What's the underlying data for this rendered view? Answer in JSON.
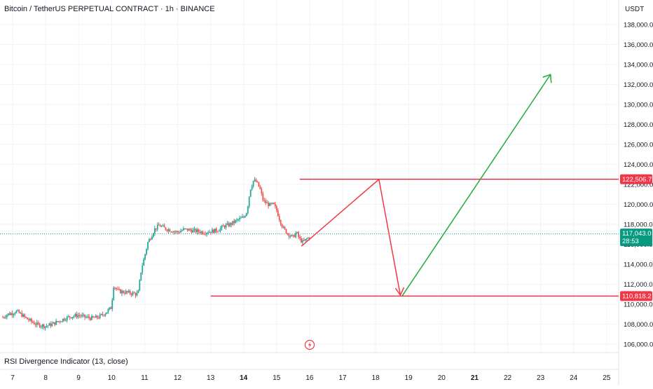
{
  "header": {
    "title": "Bitcoin / TetherUS PERPETUAL CONTRACT · 1h · BINANCE",
    "currency": "USDT"
  },
  "indicator": {
    "label": "RSI Divergence Indicator (13, close)"
  },
  "price_tags": {
    "resistance": "122,506.7",
    "current": "117,043.0",
    "countdown": "28:53",
    "support": "110,818.2"
  },
  "colors": {
    "up": "#26a69a",
    "down": "#ef5350",
    "tag_red": "#f23645",
    "tag_green": "#089981",
    "line_red": "#f23645",
    "line_green": "#22ab3a"
  },
  "icons": {
    "flash": "flash-icon"
  },
  "chart_data": {
    "type": "candlestick",
    "x_ticks": [
      {
        "label": "7",
        "day": 7
      },
      {
        "label": "8",
        "day": 8
      },
      {
        "label": "9",
        "day": 9
      },
      {
        "label": "10",
        "day": 10
      },
      {
        "label": "11",
        "day": 11
      },
      {
        "label": "12",
        "day": 12
      },
      {
        "label": "13",
        "day": 13
      },
      {
        "label": "14",
        "day": 14,
        "bold": true
      },
      {
        "label": "15",
        "day": 15
      },
      {
        "label": "16",
        "day": 16
      },
      {
        "label": "17",
        "day": 17
      },
      {
        "label": "18",
        "day": 18
      },
      {
        "label": "19",
        "day": 19
      },
      {
        "label": "20",
        "day": 20
      },
      {
        "label": "21",
        "day": 21,
        "bold": true
      },
      {
        "label": "22",
        "day": 22
      },
      {
        "label": "23",
        "day": 23
      },
      {
        "label": "24",
        "day": 24
      },
      {
        "label": "25",
        "day": 25
      }
    ],
    "y_ticks": [
      {
        "label": "106,000.0",
        "value": 106000
      },
      {
        "label": "108,000.0",
        "value": 108000
      },
      {
        "label": "110,000.0",
        "value": 110000
      },
      {
        "label": "112,000.0",
        "value": 112000
      },
      {
        "label": "114,000.0",
        "value": 114000
      },
      {
        "label": "116,000.0",
        "value": 116000
      },
      {
        "label": "118,000.0",
        "value": 118000
      },
      {
        "label": "120,000.0",
        "value": 120000
      },
      {
        "label": "122,000.0",
        "value": 122000
      },
      {
        "label": "124,000.0",
        "value": 124000
      },
      {
        "label": "126,000.0",
        "value": 126000
      },
      {
        "label": "128,000.0",
        "value": 128000
      },
      {
        "label": "130,000.0",
        "value": 130000
      },
      {
        "label": "132,000.0",
        "value": 132000
      },
      {
        "label": "134,000.0",
        "value": 134000
      },
      {
        "label": "136,000.0",
        "value": 136000
      },
      {
        "label": "138,000.0",
        "value": 138000
      }
    ],
    "price_path": [
      [
        6.7,
        108700
      ],
      [
        6.85,
        109000
      ],
      [
        7.0,
        109100
      ],
      [
        7.1,
        109300
      ],
      [
        7.25,
        109000
      ],
      [
        7.4,
        108600
      ],
      [
        7.55,
        108300
      ],
      [
        7.7,
        108000
      ],
      [
        7.85,
        107900
      ],
      [
        8.0,
        107800
      ],
      [
        8.2,
        108000
      ],
      [
        8.4,
        108300
      ],
      [
        8.6,
        108600
      ],
      [
        8.8,
        108800
      ],
      [
        9.0,
        108900
      ],
      [
        9.2,
        108700
      ],
      [
        9.4,
        108600
      ],
      [
        9.6,
        108700
      ],
      [
        9.8,
        109100
      ],
      [
        10.0,
        109700
      ],
      [
        10.05,
        111900
      ],
      [
        10.2,
        111300
      ],
      [
        10.4,
        111200
      ],
      [
        10.6,
        111100
      ],
      [
        10.8,
        111000
      ],
      [
        10.9,
        113500
      ],
      [
        11.0,
        114800
      ],
      [
        11.1,
        116200
      ],
      [
        11.2,
        116800
      ],
      [
        11.3,
        117500
      ],
      [
        11.45,
        117900
      ],
      [
        11.6,
        117600
      ],
      [
        11.8,
        117400
      ],
      [
        12.0,
        117200
      ],
      [
        12.2,
        117500
      ],
      [
        12.4,
        117400
      ],
      [
        12.6,
        117300
      ],
      [
        12.8,
        117200
      ],
      [
        13.0,
        117300
      ],
      [
        13.2,
        117400
      ],
      [
        13.4,
        117800
      ],
      [
        13.6,
        118000
      ],
      [
        13.8,
        118400
      ],
      [
        14.0,
        118700
      ],
      [
        14.1,
        119300
      ],
      [
        14.2,
        121500
      ],
      [
        14.3,
        122400
      ],
      [
        14.4,
        122200
      ],
      [
        14.5,
        121500
      ],
      [
        14.6,
        120300
      ],
      [
        14.8,
        119900
      ],
      [
        14.9,
        120000
      ],
      [
        15.0,
        119400
      ],
      [
        15.1,
        118400
      ],
      [
        15.2,
        117600
      ],
      [
        15.3,
        117200
      ],
      [
        15.4,
        116900
      ],
      [
        15.5,
        116700
      ],
      [
        15.6,
        117200
      ],
      [
        15.7,
        116500
      ],
      [
        15.8,
        116200
      ],
      [
        15.9,
        116500
      ],
      [
        16.0,
        116700
      ]
    ],
    "annotations": {
      "resistance_level": 122506.7,
      "support_level": 110818.2,
      "current_price": 117043.0,
      "projection_red": [
        [
          15.75,
          115800
        ],
        [
          18.1,
          122500
        ],
        [
          18.75,
          110900
        ]
      ],
      "projection_green": [
        [
          18.8,
          110800
        ],
        [
          23.3,
          133000
        ]
      ]
    }
  }
}
